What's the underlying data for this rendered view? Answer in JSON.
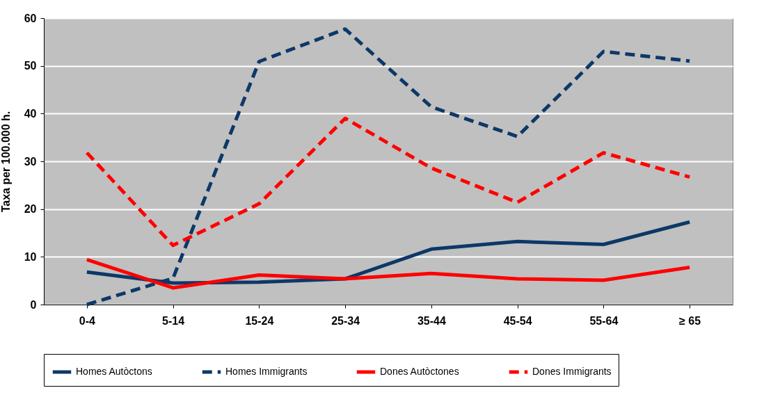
{
  "chart_data": {
    "type": "line",
    "ylabel": "Taxa per 100.000 h.",
    "categories": [
      "0-4",
      "5-14",
      "15-24",
      "25-34",
      "35-44",
      "45-54",
      "55-64",
      "≥ 65"
    ],
    "ylim": [
      0,
      60
    ],
    "yticks": [
      0,
      10,
      20,
      30,
      40,
      50,
      60
    ],
    "grid": "y",
    "legend": "bottom",
    "marker": "none",
    "series": [
      {
        "name": "Homes Autòctons",
        "color": "#0d3868",
        "line_style": "solid",
        "values": [
          6.8,
          4.5,
          4.7,
          5.4,
          11.6,
          13.2,
          12.6,
          17.3
        ]
      },
      {
        "name": "Homes Immigrants",
        "color": "#0d3868",
        "line_style": "dashed",
        "values": [
          0,
          5.5,
          50.9,
          57.7,
          41.4,
          35.2,
          53,
          51
        ]
      },
      {
        "name": "Dones Autòctones",
        "color": "#ff0000",
        "line_style": "solid",
        "values": [
          9.4,
          3.5,
          6.2,
          5.4,
          6.5,
          5.4,
          5.1,
          7.8
        ]
      },
      {
        "name": "Dones Immigrants",
        "color": "#ff0000",
        "line_style": "dashed",
        "values": [
          31.8,
          12.4,
          21.1,
          39,
          28.6,
          21.4,
          31.8,
          26.7
        ]
      }
    ]
  }
}
